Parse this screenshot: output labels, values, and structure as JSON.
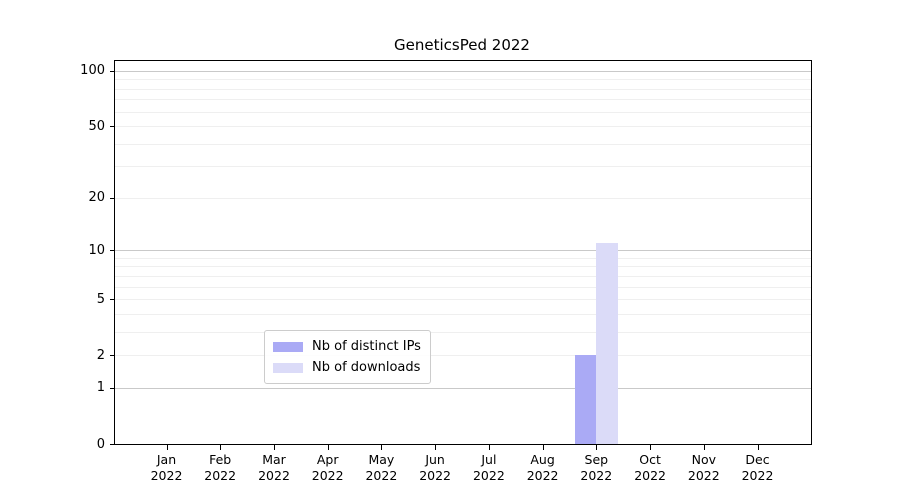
{
  "chart_data": {
    "type": "bar",
    "title": "GeneticsPed 2022",
    "categories": [
      "Jan 2022",
      "Feb 2022",
      "Mar 2022",
      "Apr 2022",
      "May 2022",
      "Jun 2022",
      "Jul 2022",
      "Aug 2022",
      "Sep 2022",
      "Oct 2022",
      "Nov 2022",
      "Dec 2022"
    ],
    "months": [
      "Jan",
      "Feb",
      "Mar",
      "Apr",
      "May",
      "Jun",
      "Jul",
      "Aug",
      "Sep",
      "Oct",
      "Nov",
      "Dec"
    ],
    "year": "2022",
    "series": [
      {
        "name": "Nb of distinct IPs",
        "color": "#aaaaf5",
        "values": [
          0,
          0,
          0,
          0,
          0,
          0,
          0,
          0,
          2,
          0,
          0,
          0
        ]
      },
      {
        "name": "Nb of downloads",
        "color": "#dbdbf8",
        "values": [
          0,
          0,
          0,
          0,
          0,
          0,
          0,
          0,
          11,
          0,
          0,
          0
        ]
      }
    ],
    "xlabel": "",
    "ylabel": "",
    "yscale": "log1p",
    "ylim": [
      0,
      113
    ],
    "y_ticks": [
      {
        "value": 100,
        "label": "100"
      },
      {
        "value": 50,
        "label": "50"
      },
      {
        "value": 20,
        "label": "20"
      },
      {
        "value": 10,
        "label": "10"
      },
      {
        "value": 5,
        "label": "5"
      },
      {
        "value": 2,
        "label": "2"
      },
      {
        "value": 1,
        "label": "1"
      },
      {
        "value": 0,
        "label": "0"
      }
    ],
    "grid": {
      "major_values": [
        1,
        10,
        100
      ],
      "minor_values": [
        2,
        3,
        4,
        5,
        6,
        7,
        8,
        9,
        20,
        30,
        40,
        50,
        60,
        70,
        80,
        90
      ],
      "major_color": "#c9c9c9",
      "minor_color": "#efefef"
    },
    "legend_position": "lower center"
  }
}
